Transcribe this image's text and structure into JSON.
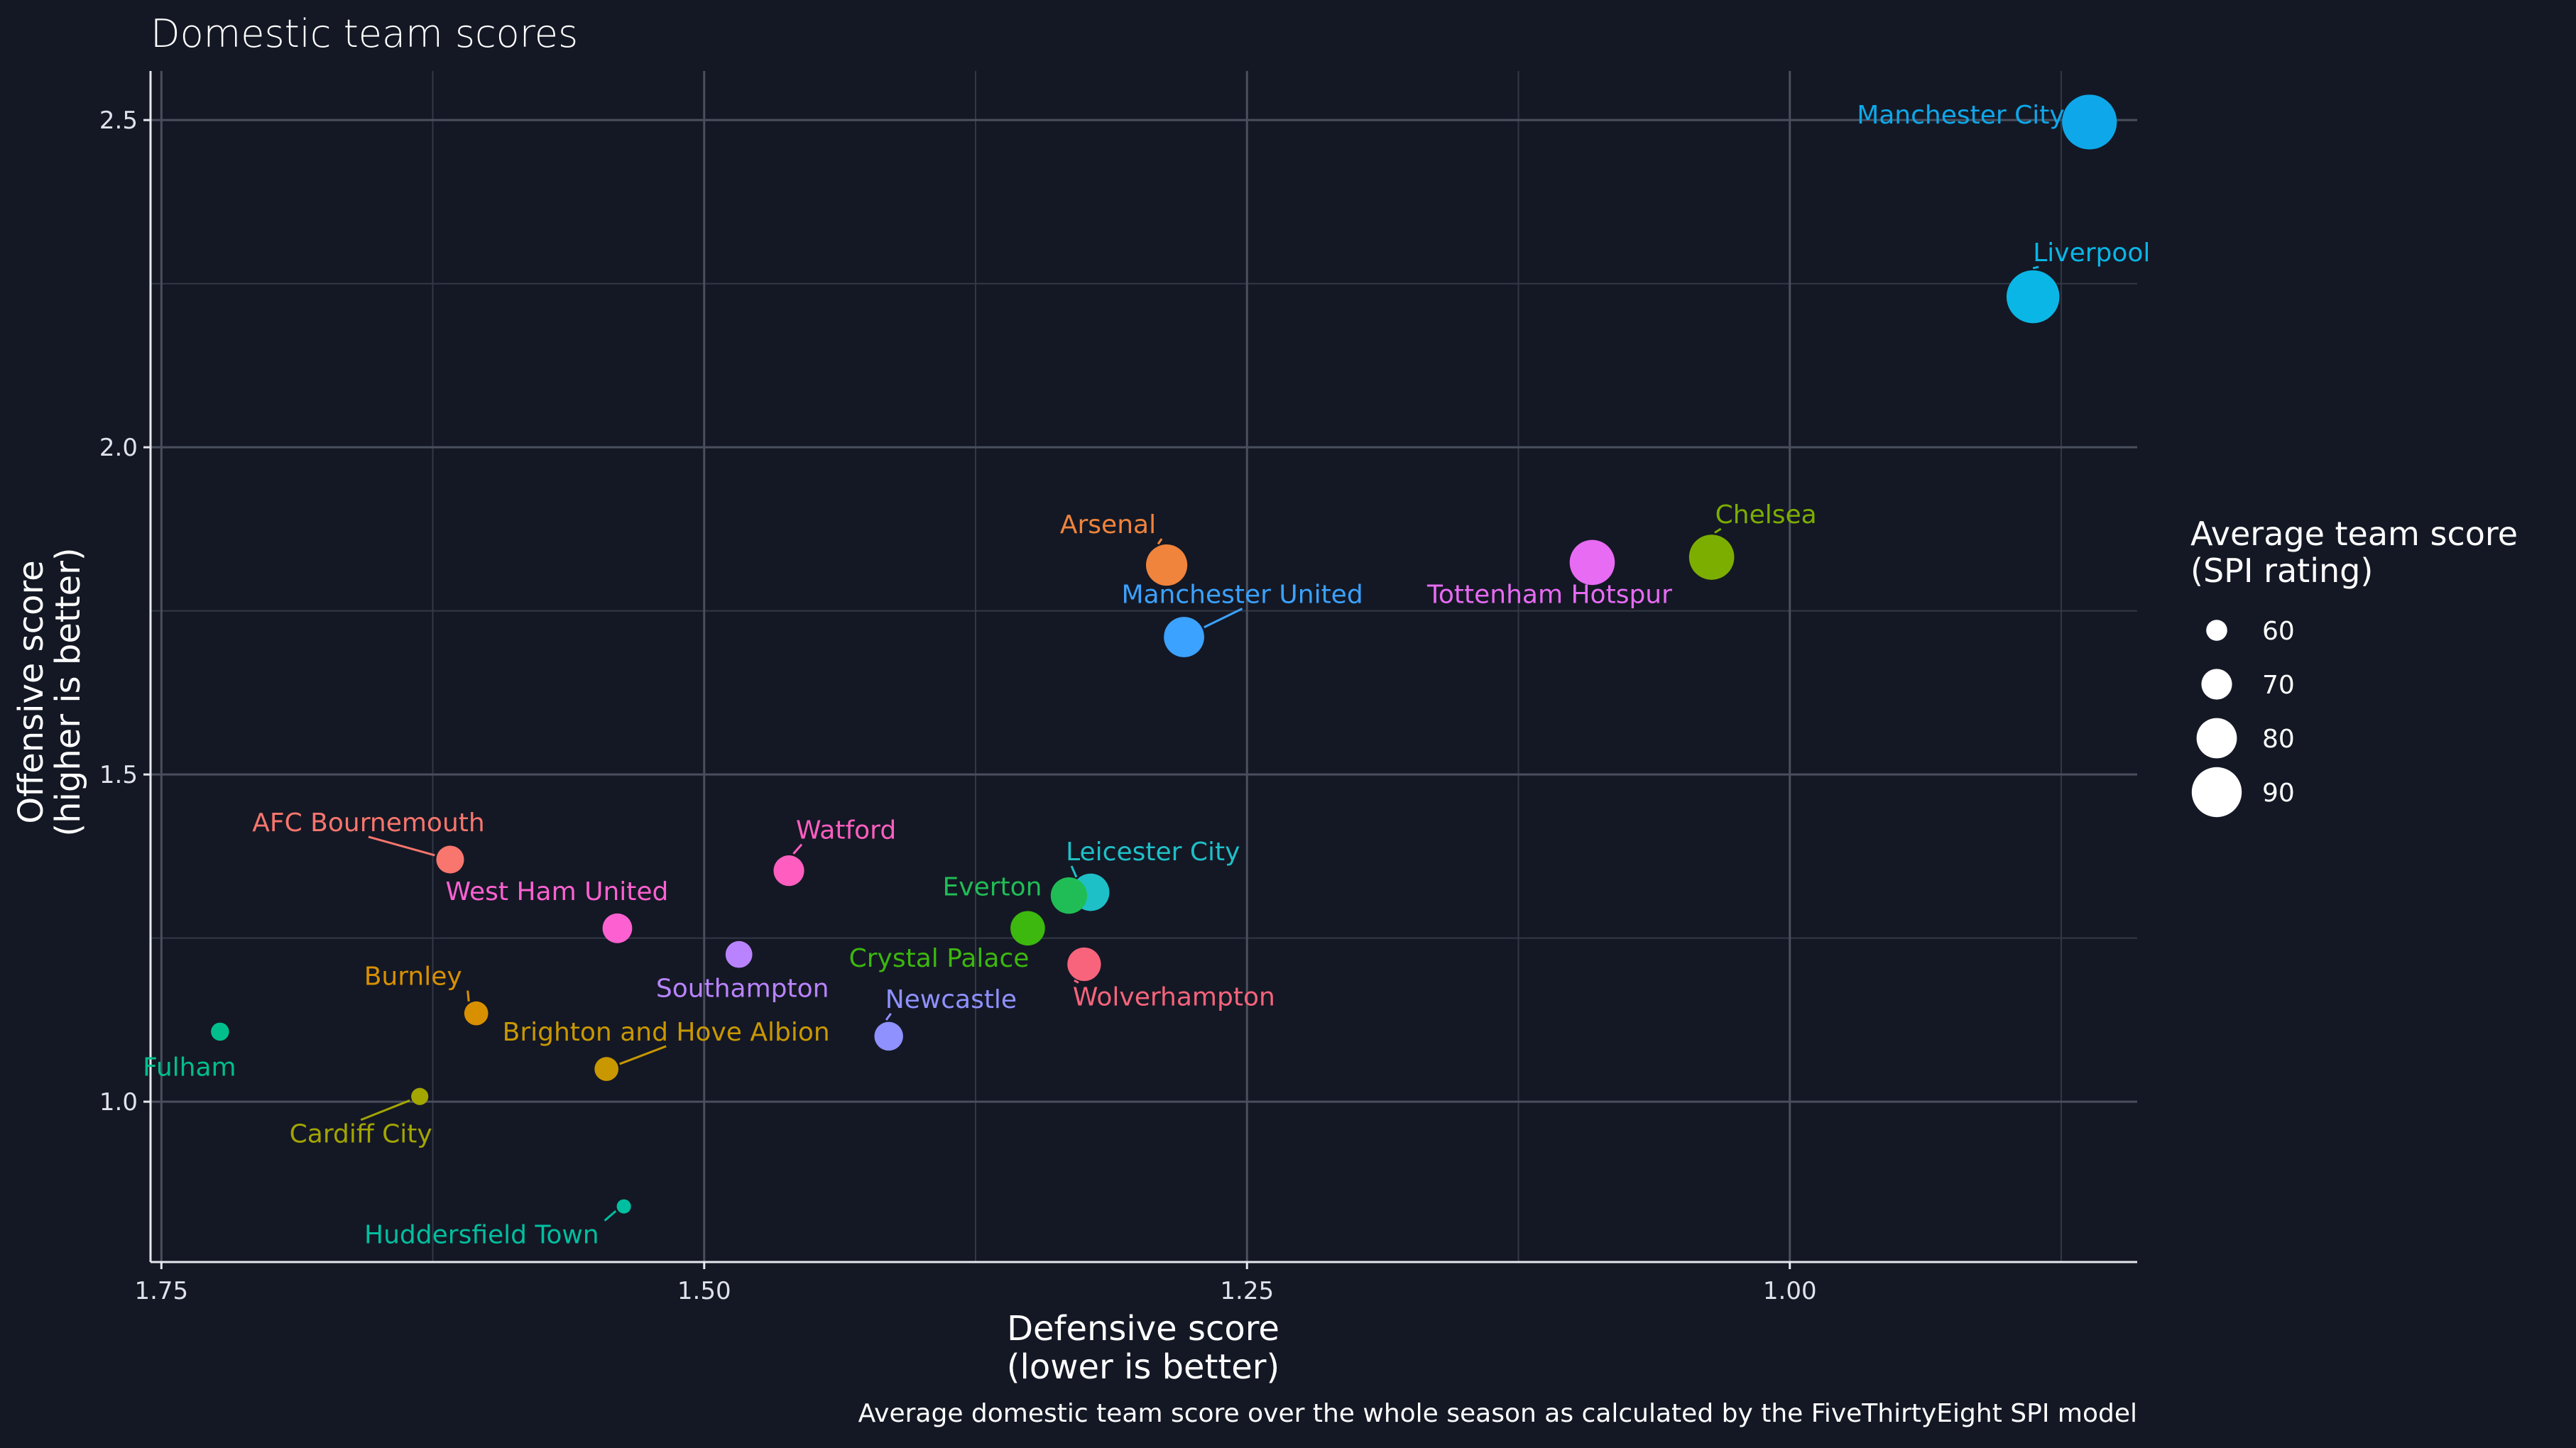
{
  "chart_data": {
    "type": "scatter",
    "title": "Domestic team scores",
    "xlabel_lines": [
      "Defensive score",
      "(lower is better)"
    ],
    "ylabel_lines": [
      "Offensive score",
      "(higher is better)"
    ],
    "caption": "Average domestic team score over the whole season as calculated by the FiveThirtyEight SPI model",
    "x_reversed": true,
    "xlim": [
      1.755,
      0.84
    ],
    "ylim": [
      0.755,
      2.575
    ],
    "x_ticks": [
      1.75,
      1.5,
      1.25,
      1.0
    ],
    "x_tick_labels": [
      "1.75",
      "1.50",
      "1.25",
      "1.00"
    ],
    "y_ticks": [
      1.0,
      1.5,
      2.0,
      2.5
    ],
    "y_tick_labels": [
      "1.0",
      "1.5",
      "2.0",
      "2.5"
    ],
    "grid": true,
    "legend": {
      "title_lines": [
        "Average team score",
        "(SPI rating)"
      ],
      "placement": "right",
      "items": [
        {
          "label": "60",
          "value": 60
        },
        {
          "label": "70",
          "value": 70
        },
        {
          "label": "80",
          "value": 80
        },
        {
          "label": "90",
          "value": 90
        }
      ]
    },
    "points": [
      {
        "team": "Manchester City",
        "x": 0.862,
        "y": 2.497,
        "spi": 95,
        "color": "#0ea8ea",
        "label_anchor": "end",
        "label_dx": -35,
        "label_dy": 2,
        "leader": false
      },
      {
        "team": "Liverpool",
        "x": 0.888,
        "y": 2.23,
        "spi": 93,
        "color": "#0ab6e6",
        "label_anchor": "start",
        "label_dx": 0,
        "label_dy": -50,
        "leader": true
      },
      {
        "team": "Chelsea",
        "x": 1.036,
        "y": 1.832,
        "spi": 85,
        "color": "#7cae00",
        "label_anchor": "start",
        "label_dx": 5,
        "label_dy": -48,
        "leader": true
      },
      {
        "team": "Tottenham Hotspur",
        "x": 1.091,
        "y": 1.824,
        "spi": 85,
        "color": "#e76bf3",
        "label_anchor": "middle",
        "label_dx": -60,
        "label_dy": 57,
        "leader": false
      },
      {
        "team": "Arsenal",
        "x": 1.287,
        "y": 1.82,
        "spi": 81,
        "color": "#f0843c",
        "label_anchor": "end",
        "label_dx": -15,
        "label_dy": -45,
        "leader": true
      },
      {
        "team": "Manchester United",
        "x": 1.279,
        "y": 1.71,
        "spi": 80,
        "color": "#3ba2ff",
        "label_anchor": "middle",
        "label_dx": 82,
        "label_dy": -48,
        "leader": true
      },
      {
        "team": "Leicester City",
        "x": 1.322,
        "y": 1.32,
        "spi": 77,
        "color": "#1ec0c8",
        "label_anchor": "start",
        "label_dx": -35,
        "label_dy": -45,
        "leader": true
      },
      {
        "team": "Everton",
        "x": 1.332,
        "y": 1.315,
        "spi": 76,
        "color": "#20bd56",
        "label_anchor": "end",
        "label_dx": -38,
        "label_dy": 0,
        "leader": false
      },
      {
        "team": "Crystal Palace",
        "x": 1.351,
        "y": 1.265,
        "spi": 74,
        "color": "#3cb80e",
        "label_anchor": "end",
        "label_dx": 2,
        "label_dy": 54,
        "leader": false
      },
      {
        "team": "Wolverhampton",
        "x": 1.325,
        "y": 1.21,
        "spi": 73,
        "color": "#f8647c",
        "label_anchor": "start",
        "label_dx": -16,
        "label_dy": 58,
        "leader": true
      },
      {
        "team": "Watford",
        "x": 1.461,
        "y": 1.353,
        "spi": 70,
        "color": "#ff5ec0",
        "label_anchor": "start",
        "label_dx": 10,
        "label_dy": -45,
        "leader": true
      },
      {
        "team": "AFC Bournemouth",
        "x": 1.617,
        "y": 1.37,
        "spi": 67,
        "color": "#f8766d",
        "label_anchor": "middle",
        "label_dx": -115,
        "label_dy": -40,
        "leader": true
      },
      {
        "team": "West Ham United",
        "x": 1.54,
        "y": 1.265,
        "spi": 69,
        "color": "#fd61d1",
        "label_anchor": "middle",
        "label_dx": -85,
        "label_dy": -40,
        "leader": false
      },
      {
        "team": "Southampton",
        "x": 1.484,
        "y": 1.225,
        "spi": 66,
        "color": "#b983ff",
        "label_anchor": "middle",
        "label_dx": 5,
        "label_dy": 60,
        "leader": false
      },
      {
        "team": "Newcastle",
        "x": 1.415,
        "y": 1.1,
        "spi": 68,
        "color": "#8f91ff",
        "label_anchor": "start",
        "label_dx": -5,
        "label_dy": -40,
        "leader": true
      },
      {
        "team": "Burnley",
        "x": 1.605,
        "y": 1.135,
        "spi": 63,
        "color": "#d89000",
        "label_anchor": "end",
        "label_dx": -20,
        "label_dy": -40,
        "leader": true
      },
      {
        "team": "Brighton and Hove Albion",
        "x": 1.545,
        "y": 1.05,
        "spi": 63,
        "color": "#c99800",
        "label_anchor": "middle",
        "label_dx": 84,
        "label_dy": -40,
        "leader": true
      },
      {
        "team": "Fulham",
        "x": 1.723,
        "y": 1.107,
        "spi": 57,
        "color": "#00bf8c",
        "label_anchor": "middle",
        "label_dx": -43,
        "label_dy": 62,
        "leader": false
      },
      {
        "team": "Cardiff City",
        "x": 1.631,
        "y": 1.008,
        "spi": 56,
        "color": "#a3a500",
        "label_anchor": "middle",
        "label_dx": -83,
        "label_dy": 65,
        "leader": true
      },
      {
        "team": "Huddersfield Town",
        "x": 1.537,
        "y": 0.84,
        "spi": 53,
        "color": "#00bfa0",
        "label_anchor": "end",
        "label_dx": -35,
        "label_dy": 52,
        "leader": true
      }
    ]
  }
}
